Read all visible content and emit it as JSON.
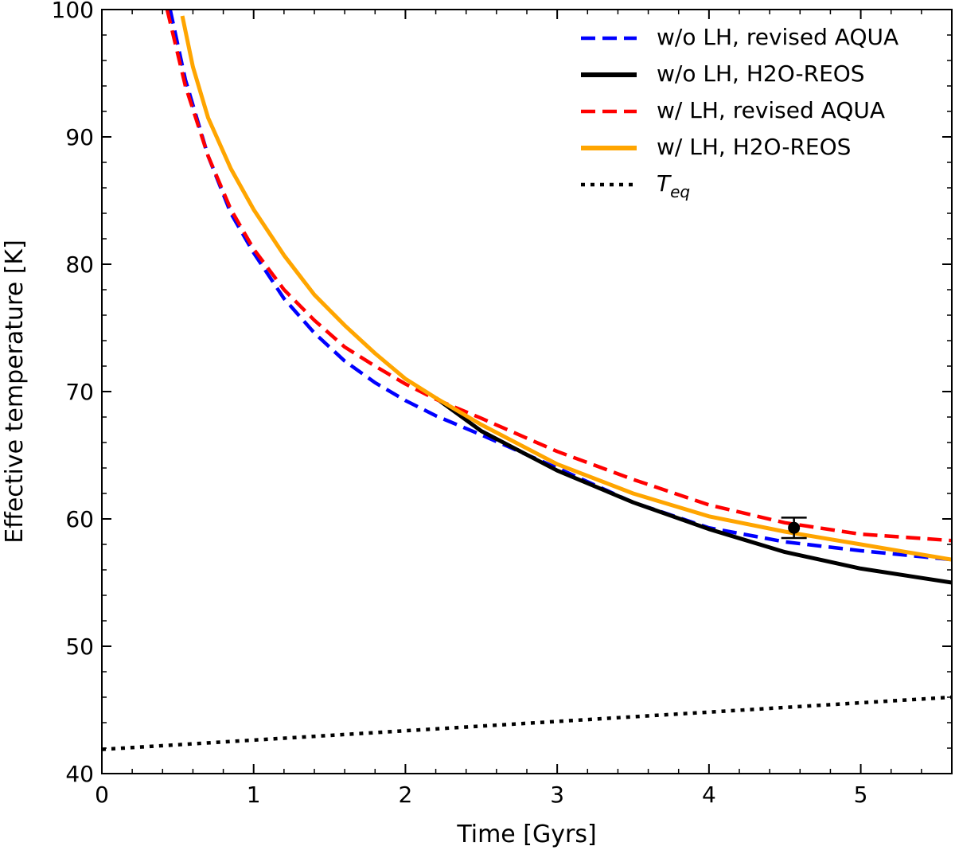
{
  "chart_data": {
    "type": "line",
    "xlabel": "Time [Gyrs]",
    "ylabel": "Effective temperature [K]",
    "xlim": [
      0,
      5.6
    ],
    "ylim": [
      40,
      100
    ],
    "xticks": [
      0,
      1,
      2,
      3,
      4,
      5
    ],
    "yticks": [
      40,
      50,
      60,
      70,
      80,
      90,
      100
    ],
    "grid": false,
    "legend_position": "top-right",
    "series": [
      {
        "name": "w/o LH, revised AQUA",
        "color": "#0000ff",
        "style": "dashed",
        "x": [
          0.45,
          0.55,
          0.7,
          0.85,
          1.0,
          1.2,
          1.4,
          1.6,
          1.8,
          2.0,
          2.2,
          2.5,
          3.0,
          3.5,
          4.0,
          4.5,
          5.0,
          5.6
        ],
        "y": [
          100,
          94.5,
          88.5,
          84.0,
          80.9,
          77.3,
          74.6,
          72.4,
          70.7,
          69.3,
          68.1,
          66.6,
          64.0,
          61.3,
          59.3,
          58.2,
          57.5,
          56.8
        ]
      },
      {
        "name": "w/o LH, H2O-REOS",
        "color": "#000000",
        "style": "solid",
        "x": [
          2.2,
          2.5,
          3.0,
          3.5,
          4.0,
          4.5,
          5.0,
          5.6
        ],
        "y": [
          69.5,
          66.9,
          63.8,
          61.3,
          59.2,
          57.4,
          56.1,
          55.0
        ]
      },
      {
        "name": "w/ LH, revised AQUA",
        "color": "#ff0000",
        "style": "dashed",
        "x": [
          0.43,
          0.55,
          0.7,
          0.85,
          1.0,
          1.2,
          1.4,
          1.6,
          1.8,
          2.0,
          2.2,
          2.5,
          3.0,
          3.5,
          4.0,
          4.5,
          5.0,
          5.6
        ],
        "y": [
          100,
          94.0,
          88.5,
          84.3,
          81.2,
          78.0,
          75.6,
          73.5,
          72.0,
          70.6,
          69.4,
          67.9,
          65.3,
          63.1,
          61.1,
          59.7,
          58.8,
          58.3
        ]
      },
      {
        "name": "w/ LH, H2O-REOS",
        "color": "#ffa500",
        "style": "solid",
        "x": [
          0.53,
          0.6,
          0.7,
          0.85,
          1.0,
          1.2,
          1.4,
          1.6,
          1.8,
          2.0,
          2.2,
          2.5,
          3.0,
          3.5,
          4.0,
          4.5,
          5.0,
          5.6
        ],
        "y": [
          99.5,
          95.5,
          91.5,
          87.5,
          84.3,
          80.7,
          77.6,
          75.2,
          73.0,
          71.0,
          69.5,
          67.4,
          64.3,
          62.0,
          60.2,
          59.0,
          58.0,
          56.8
        ]
      },
      {
        "name": "T_eq",
        "color": "#000000",
        "style": "dotted",
        "x": [
          0,
          5.6
        ],
        "y": [
          41.9,
          46.0
        ]
      }
    ],
    "error_point": {
      "x": 4.56,
      "y": 59.3,
      "yerr": 0.8,
      "color": "#000000"
    }
  }
}
